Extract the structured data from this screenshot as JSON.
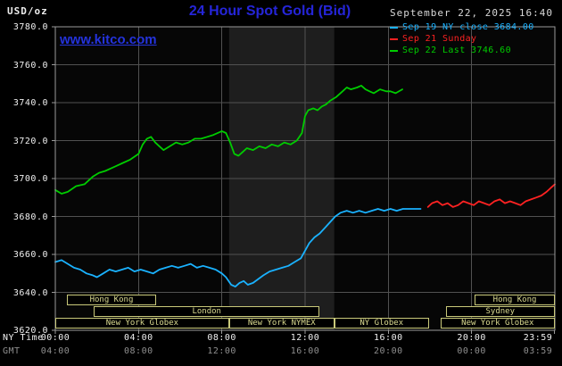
{
  "header": {
    "units": "USD/oz",
    "title": "24 Hour Spot Gold (Bid)",
    "datetime": "September 22, 2025 16:40",
    "watermark": "www.kitco.com"
  },
  "legend": {
    "items": [
      {
        "label": "Sep 19 NY close 3684.00",
        "color": "#1ab2ff"
      },
      {
        "label": "Sep 21 Sunday",
        "color": "#ff2222"
      },
      {
        "label": "Sep 22 Last 3746.60",
        "color": "#00cc00"
      }
    ]
  },
  "axes": {
    "y": {
      "tick_values": [
        3780,
        3760,
        3740,
        3720,
        3700,
        3680,
        3660,
        3640,
        3620
      ],
      "tick_labels": [
        "3780.0",
        "3760.0",
        "3740.0",
        "3720.0",
        "3700.0",
        "3680.0",
        "3660.0",
        "3640.0",
        "3620.0"
      ]
    },
    "x": {
      "ny_label": "NY Time",
      "gmt_label": "GMT",
      "ticks": [
        {
          "hour": 0,
          "ny": "00:00",
          "gmt": "04:00"
        },
        {
          "hour": 4,
          "ny": "04:00",
          "gmt": "08:00"
        },
        {
          "hour": 8,
          "ny": "08:00",
          "gmt": "12:00"
        },
        {
          "hour": 12,
          "ny": "12:00",
          "gmt": "16:00"
        },
        {
          "hour": 16,
          "ny": "16:00",
          "gmt": "20:00"
        },
        {
          "hour": 20,
          "ny": "20:00",
          "gmt": "00:00"
        },
        {
          "hour": 23.983,
          "ny": "23:59",
          "gmt": "03:59"
        }
      ]
    }
  },
  "sessions": [
    {
      "label": "Hong Kong",
      "row": 0,
      "start": 0.55,
      "end": 4.85
    },
    {
      "label": "Hong Kong",
      "row": 0,
      "start": 20.15,
      "end": 24
    },
    {
      "label": "London",
      "row": 1,
      "start": 1.85,
      "end": 12.7
    },
    {
      "label": "Sydney",
      "row": 1,
      "start": 18.75,
      "end": 24
    },
    {
      "label": "New York Globex",
      "row": 2,
      "start": 0,
      "end": 8.35
    },
    {
      "label": "New York NYMEX",
      "row": 2,
      "start": 8.35,
      "end": 13.4
    },
    {
      "label": "NY Globex",
      "row": 2,
      "start": 13.4,
      "end": 17.95
    },
    {
      "label": "New York Globex",
      "row": 2,
      "start": 18.5,
      "end": 24
    }
  ],
  "chart_data": {
    "type": "line",
    "title": "24 Hour Spot Gold (Bid)",
    "xlabel": "NY Time (hours, 00:00-23:59)",
    "ylabel": "USD/oz",
    "xlim": [
      0,
      24
    ],
    "ylim": [
      3620,
      3780
    ],
    "grid": true,
    "legend_position": "top-right",
    "shaded_region": {
      "label": "New York NYMEX session",
      "x_start": 8.35,
      "x_end": 13.4,
      "color": "#1e1e1e"
    },
    "series": [
      {
        "name": "Sep 19 NY close 3684.00",
        "color": "#1ab2ff",
        "points": [
          [
            0,
            3656
          ],
          [
            0.3,
            3657
          ],
          [
            0.6,
            3655
          ],
          [
            0.9,
            3653
          ],
          [
            1.2,
            3652
          ],
          [
            1.5,
            3650
          ],
          [
            1.8,
            3649
          ],
          [
            2,
            3648
          ],
          [
            2.3,
            3650
          ],
          [
            2.6,
            3652
          ],
          [
            2.9,
            3651
          ],
          [
            3.2,
            3652
          ],
          [
            3.5,
            3653
          ],
          [
            3.8,
            3651
          ],
          [
            4.1,
            3652
          ],
          [
            4.4,
            3651
          ],
          [
            4.7,
            3650
          ],
          [
            5,
            3652
          ],
          [
            5.3,
            3653
          ],
          [
            5.6,
            3654
          ],
          [
            5.9,
            3653
          ],
          [
            6.2,
            3654
          ],
          [
            6.5,
            3655
          ],
          [
            6.8,
            3653
          ],
          [
            7.1,
            3654
          ],
          [
            7.4,
            3653
          ],
          [
            7.7,
            3652
          ],
          [
            8,
            3650
          ],
          [
            8.2,
            3648
          ],
          [
            8.45,
            3644
          ],
          [
            8.65,
            3643
          ],
          [
            8.85,
            3645
          ],
          [
            9.05,
            3646
          ],
          [
            9.25,
            3644
          ],
          [
            9.5,
            3645
          ],
          [
            9.75,
            3647
          ],
          [
            10,
            3649
          ],
          [
            10.3,
            3651
          ],
          [
            10.6,
            3652
          ],
          [
            10.9,
            3653
          ],
          [
            11.2,
            3654
          ],
          [
            11.5,
            3656
          ],
          [
            11.8,
            3658
          ],
          [
            12,
            3662
          ],
          [
            12.2,
            3666
          ],
          [
            12.45,
            3669
          ],
          [
            12.7,
            3671
          ],
          [
            12.95,
            3674
          ],
          [
            13.2,
            3677
          ],
          [
            13.45,
            3680
          ],
          [
            13.7,
            3682
          ],
          [
            14,
            3683
          ],
          [
            14.3,
            3682
          ],
          [
            14.6,
            3683
          ],
          [
            14.9,
            3682
          ],
          [
            15.2,
            3683
          ],
          [
            15.5,
            3684
          ],
          [
            15.8,
            3683
          ],
          [
            16.1,
            3684
          ],
          [
            16.4,
            3683
          ],
          [
            16.7,
            3684
          ],
          [
            17,
            3684
          ],
          [
            17.3,
            3684
          ],
          [
            17.55,
            3684
          ]
        ]
      },
      {
        "name": "Sep 21 Sunday",
        "color": "#ff2222",
        "points": [
          [
            17.9,
            3685
          ],
          [
            18.1,
            3687
          ],
          [
            18.35,
            3688
          ],
          [
            18.6,
            3686
          ],
          [
            18.85,
            3687
          ],
          [
            19.1,
            3685
          ],
          [
            19.35,
            3686
          ],
          [
            19.6,
            3688
          ],
          [
            19.85,
            3687
          ],
          [
            20.1,
            3686
          ],
          [
            20.35,
            3688
          ],
          [
            20.6,
            3687
          ],
          [
            20.85,
            3686
          ],
          [
            21.1,
            3688
          ],
          [
            21.35,
            3689
          ],
          [
            21.6,
            3687
          ],
          [
            21.85,
            3688
          ],
          [
            22.1,
            3687
          ],
          [
            22.35,
            3686
          ],
          [
            22.6,
            3688
          ],
          [
            22.85,
            3689
          ],
          [
            23.1,
            3690
          ],
          [
            23.35,
            3691
          ],
          [
            23.6,
            3693
          ],
          [
            23.8,
            3695
          ],
          [
            24,
            3697
          ]
        ]
      },
      {
        "name": "Sep 22 Last 3746.60",
        "color": "#00cc00",
        "points": [
          [
            0,
            3694
          ],
          [
            0.3,
            3692
          ],
          [
            0.6,
            3693
          ],
          [
            1,
            3696
          ],
          [
            1.4,
            3697
          ],
          [
            1.8,
            3701
          ],
          [
            2.1,
            3703
          ],
          [
            2.4,
            3704
          ],
          [
            2.8,
            3706
          ],
          [
            3.2,
            3708
          ],
          [
            3.6,
            3710
          ],
          [
            4,
            3713
          ],
          [
            4.2,
            3718
          ],
          [
            4.4,
            3721
          ],
          [
            4.6,
            3722
          ],
          [
            4.8,
            3719
          ],
          [
            5,
            3717
          ],
          [
            5.2,
            3715
          ],
          [
            5.5,
            3717
          ],
          [
            5.8,
            3719
          ],
          [
            6.1,
            3718
          ],
          [
            6.4,
            3719
          ],
          [
            6.7,
            3721
          ],
          [
            7,
            3721
          ],
          [
            7.3,
            3722
          ],
          [
            7.6,
            3723
          ],
          [
            8,
            3725
          ],
          [
            8.2,
            3724
          ],
          [
            8.4,
            3719
          ],
          [
            8.6,
            3713
          ],
          [
            8.8,
            3712
          ],
          [
            9,
            3714
          ],
          [
            9.2,
            3716
          ],
          [
            9.5,
            3715
          ],
          [
            9.8,
            3717
          ],
          [
            10.1,
            3716
          ],
          [
            10.4,
            3718
          ],
          [
            10.7,
            3717
          ],
          [
            11,
            3719
          ],
          [
            11.3,
            3718
          ],
          [
            11.6,
            3720
          ],
          [
            11.85,
            3724
          ],
          [
            12,
            3733
          ],
          [
            12.15,
            3736
          ],
          [
            12.4,
            3737
          ],
          [
            12.6,
            3736
          ],
          [
            12.8,
            3738
          ],
          [
            13,
            3739
          ],
          [
            13.2,
            3741
          ],
          [
            13.5,
            3743
          ],
          [
            13.8,
            3746
          ],
          [
            14,
            3748
          ],
          [
            14.2,
            3747
          ],
          [
            14.5,
            3748
          ],
          [
            14.7,
            3749
          ],
          [
            14.9,
            3747
          ],
          [
            15.1,
            3746
          ],
          [
            15.3,
            3745
          ],
          [
            15.6,
            3747
          ],
          [
            15.9,
            3746
          ],
          [
            16.1,
            3746
          ],
          [
            16.35,
            3745
          ],
          [
            16.67,
            3747
          ]
        ]
      }
    ]
  }
}
